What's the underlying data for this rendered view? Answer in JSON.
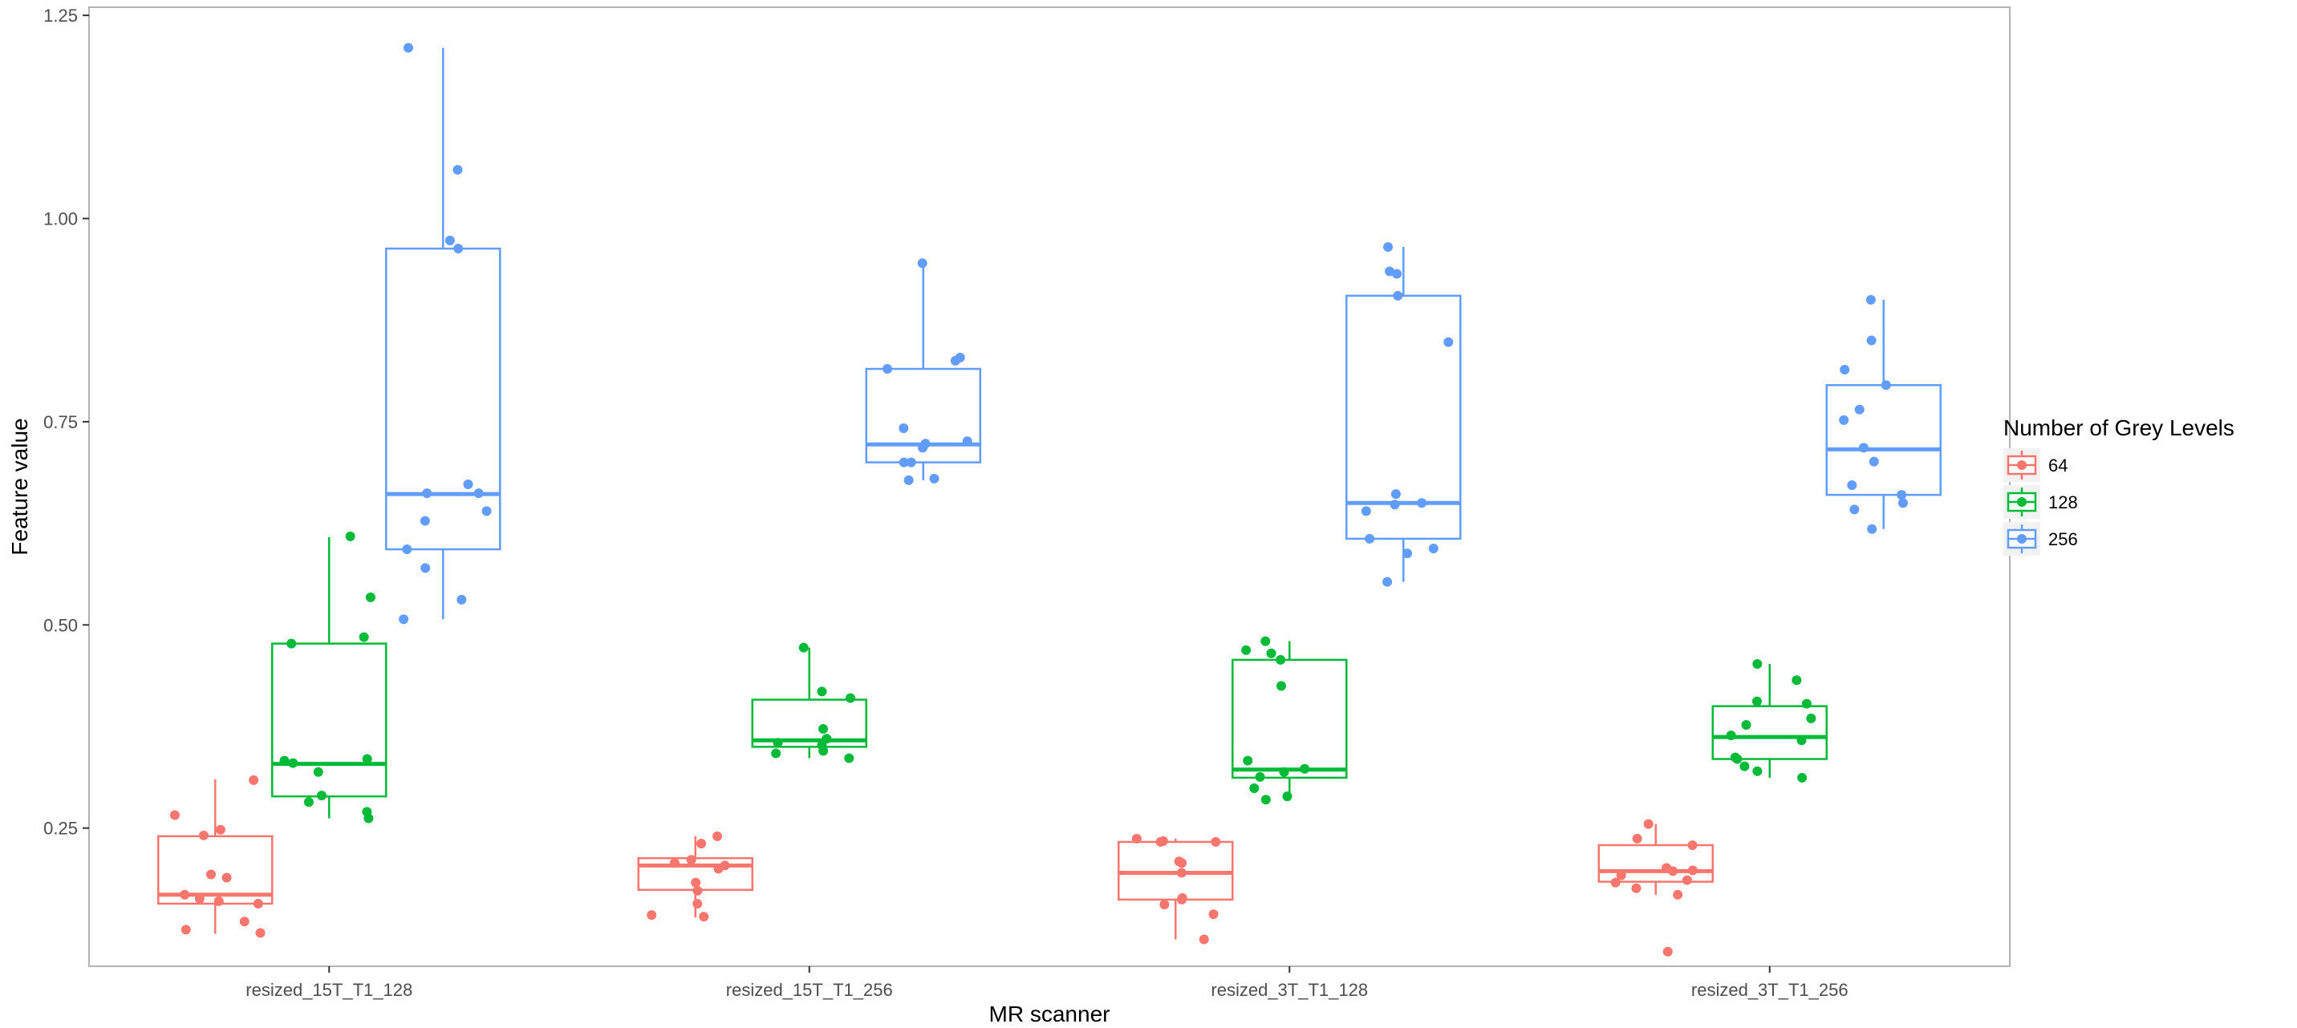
{
  "chart_data": {
    "type": "box",
    "title": "",
    "xlabel": "MR scanner",
    "ylabel": "Feature value",
    "ylim": [
      0.08,
      1.26
    ],
    "yticks": [
      0.25,
      0.5,
      0.75,
      1.0,
      1.25
    ],
    "ytick_labels": [
      "0.25",
      "0.50",
      "0.75",
      "1.00",
      "1.25"
    ],
    "grid": false,
    "legend": {
      "title": "Number of Grey Levels",
      "position": "right"
    },
    "categories": [
      "resized_15T_T1_128",
      "resized_15T_T1_256",
      "resized_3T_T1_128",
      "resized_3T_T1_256"
    ],
    "series": [
      {
        "name": "64",
        "color": "#F8766D",
        "boxes": [
          {
            "whisker_low": 0.12,
            "q1": 0.157,
            "median": 0.168,
            "q3": 0.24,
            "whisker_high": 0.31
          },
          {
            "whisker_low": 0.14,
            "q1": 0.174,
            "median": 0.204,
            "q3": 0.213,
            "whisker_high": 0.24
          },
          {
            "whisker_low": 0.113,
            "q1": 0.162,
            "median": 0.195,
            "q3": 0.233,
            "whisker_high": 0.237
          },
          {
            "whisker_low": 0.168,
            "q1": 0.184,
            "median": 0.197,
            "q3": 0.229,
            "whisker_high": 0.255
          }
        ],
        "points": [
          [
            0.309,
            0.266,
            0.248,
            0.241,
            0.193,
            0.189,
            0.168,
            0.163,
            0.16,
            0.157,
            0.135,
            0.125,
            0.121
          ],
          [
            0.24,
            0.231,
            0.211,
            0.207,
            0.204,
            0.2,
            0.183,
            0.173,
            0.157,
            0.143,
            0.141
          ],
          [
            0.237,
            0.234,
            0.233,
            0.233,
            0.209,
            0.207,
            0.195,
            0.164,
            0.162,
            0.156,
            0.144,
            0.113
          ],
          [
            0.255,
            0.237,
            0.229,
            0.201,
            0.198,
            0.197,
            0.192,
            0.186,
            0.183,
            0.176,
            0.168,
            0.098
          ]
        ]
      },
      {
        "name": "128",
        "color": "#00BA38",
        "boxes": [
          {
            "whisker_low": 0.262,
            "q1": 0.289,
            "median": 0.329,
            "q3": 0.477,
            "whisker_high": 0.608
          },
          {
            "whisker_low": 0.336,
            "q1": 0.35,
            "median": 0.358,
            "q3": 0.408,
            "whisker_high": 0.472
          },
          {
            "whisker_low": 0.284,
            "q1": 0.312,
            "median": 0.322,
            "q3": 0.457,
            "whisker_high": 0.48
          },
          {
            "whisker_low": 0.312,
            "q1": 0.335,
            "median": 0.362,
            "q3": 0.4,
            "whisker_high": 0.452
          }
        ],
        "points": [
          [
            0.609,
            0.534,
            0.485,
            0.477,
            0.335,
            0.333,
            0.33,
            0.319,
            0.29,
            0.282,
            0.27,
            0.262
          ],
          [
            0.472,
            0.418,
            0.41,
            0.372,
            0.36,
            0.355,
            0.352,
            0.345,
            0.342,
            0.336
          ],
          [
            0.48,
            0.469,
            0.465,
            0.457,
            0.425,
            0.333,
            0.323,
            0.319,
            0.313,
            0.299,
            0.289,
            0.285
          ],
          [
            0.452,
            0.432,
            0.406,
            0.403,
            0.385,
            0.377,
            0.364,
            0.358,
            0.337,
            0.335,
            0.326,
            0.32,
            0.312
          ]
        ]
      },
      {
        "name": "256",
        "color": "#619CFF",
        "boxes": [
          {
            "whisker_low": 0.507,
            "q1": 0.593,
            "median": 0.661,
            "q3": 0.963,
            "whisker_high": 1.21
          },
          {
            "whisker_low": 0.678,
            "q1": 0.7,
            "median": 0.722,
            "q3": 0.815,
            "whisker_high": 0.945
          },
          {
            "whisker_low": 0.553,
            "q1": 0.606,
            "median": 0.65,
            "q3": 0.905,
            "whisker_high": 0.965
          },
          {
            "whisker_low": 0.618,
            "q1": 0.66,
            "median": 0.716,
            "q3": 0.795,
            "whisker_high": 0.9
          }
        ],
        "points": [
          [
            1.21,
            1.06,
            0.973,
            0.963,
            0.673,
            0.662,
            0.662,
            0.64,
            0.628,
            0.593,
            0.57,
            0.531,
            0.507
          ],
          [
            0.945,
            0.829,
            0.825,
            0.815,
            0.742,
            0.726,
            0.723,
            0.718,
            0.7,
            0.7,
            0.68,
            0.678
          ],
          [
            0.965,
            0.935,
            0.932,
            0.905,
            0.848,
            0.661,
            0.65,
            0.648,
            0.64,
            0.606,
            0.594,
            0.588,
            0.553
          ],
          [
            0.9,
            0.85,
            0.814,
            0.795,
            0.765,
            0.752,
            0.718,
            0.701,
            0.672,
            0.66,
            0.65,
            0.642,
            0.618
          ]
        ]
      }
    ]
  }
}
